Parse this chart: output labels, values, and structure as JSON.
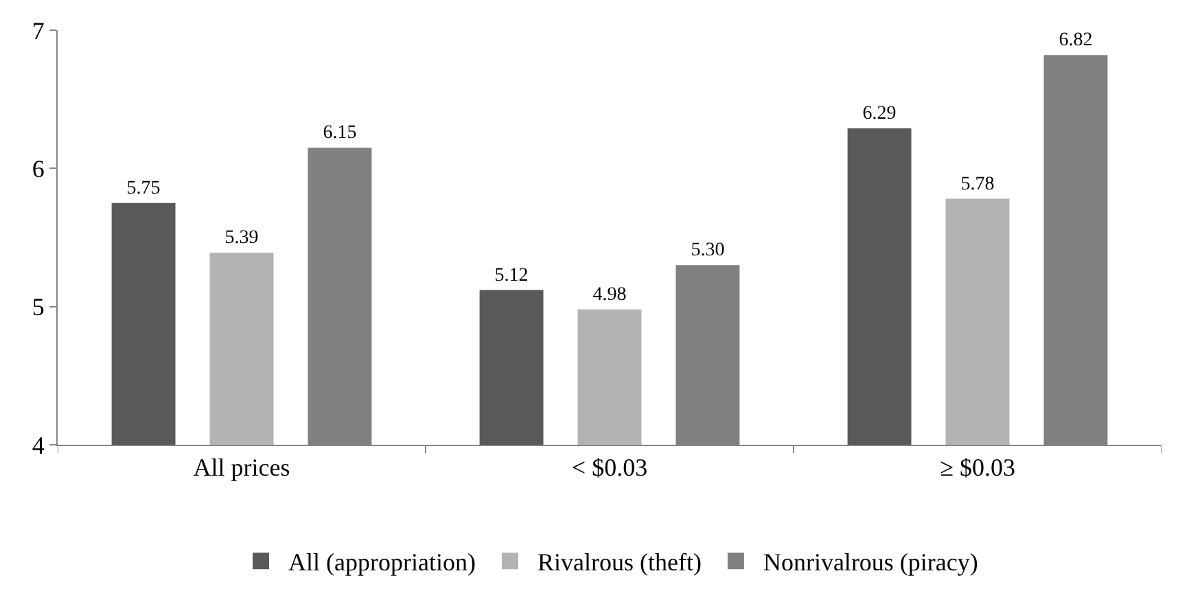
{
  "chart_data": {
    "type": "bar",
    "categories": [
      "All prices",
      "< $0.03",
      "≥ $0.03"
    ],
    "series": [
      {
        "name": "All (appropriation)",
        "color": "#595959",
        "values": [
          5.75,
          5.12,
          6.29
        ],
        "value_labels": [
          "5.75",
          "5.12",
          "6.29"
        ]
      },
      {
        "name": "Rivalrous (theft)",
        "color": "#b3b3b3",
        "values": [
          5.39,
          4.98,
          5.78
        ],
        "value_labels": [
          "5.39",
          "4.98",
          "5.78"
        ]
      },
      {
        "name": "Nonrivalrous (piracy)",
        "color": "#808080",
        "values": [
          6.15,
          5.3,
          6.82
        ],
        "value_labels": [
          "6.15",
          "5.30",
          "6.82"
        ]
      }
    ],
    "ylim": [
      4,
      7
    ],
    "yticks": [
      4,
      5,
      6,
      7
    ],
    "legend": "bottom"
  }
}
